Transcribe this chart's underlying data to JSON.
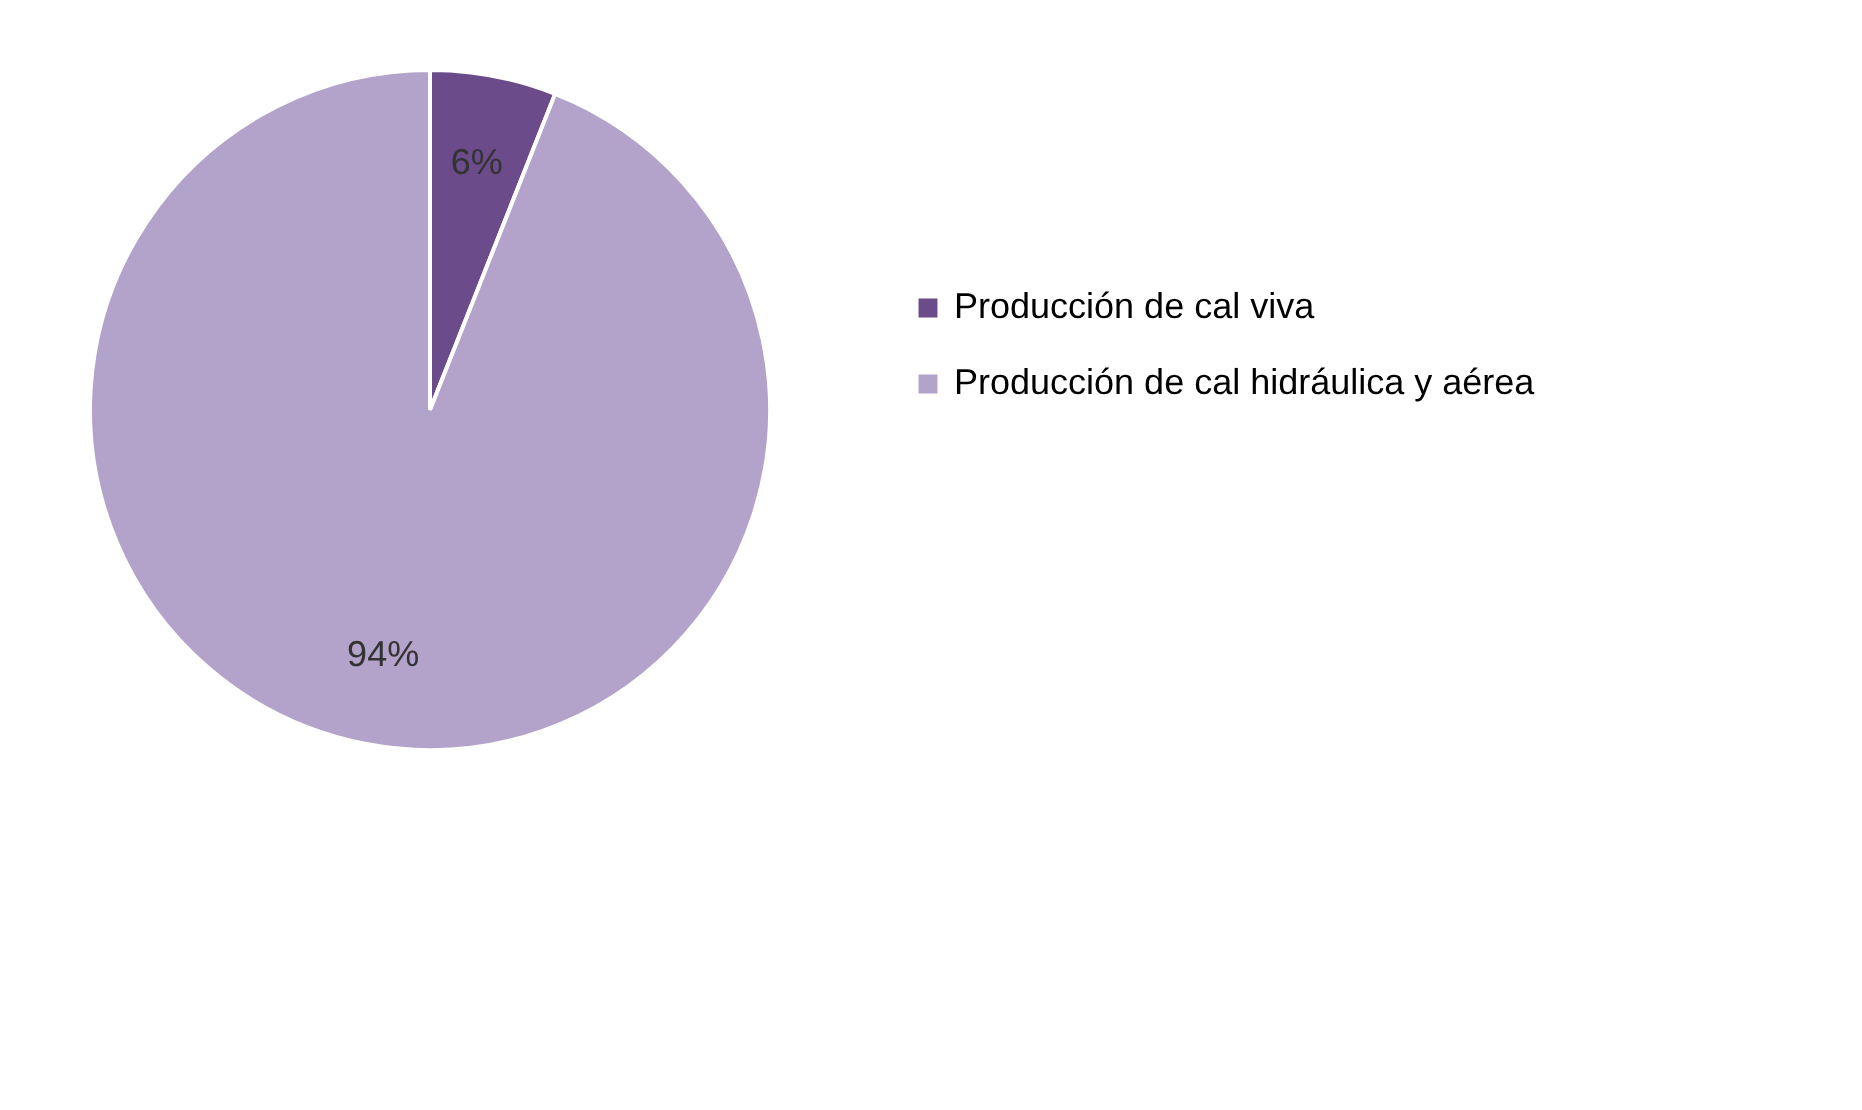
{
  "chart_data": {
    "type": "pie",
    "categories": [
      "Producción de cal viva",
      "Producción de cal hidráulica y aérea"
    ],
    "values": [
      6,
      94
    ],
    "colors": [
      "#6b4b8a",
      "#b3a2c9"
    ],
    "value_labels": [
      "6%",
      "94%"
    ],
    "legend": "right"
  }
}
